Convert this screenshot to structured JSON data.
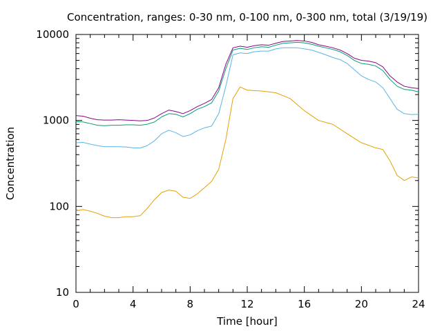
{
  "chart_data": {
    "type": "line",
    "title": "Concentration, ranges: 0-30 nm, 0-100 nm, 0-300 nm, total (3/19/19)",
    "xlabel": "Time [hour]",
    "ylabel": "Concentration",
    "xlim": [
      0,
      24
    ],
    "ylim": [
      10,
      10000
    ],
    "yscale": "log",
    "grid": false,
    "legend": "none",
    "x_ticks": [
      0,
      4,
      8,
      12,
      16,
      20,
      24
    ],
    "x_tick_labels": [
      "0",
      "4",
      "8",
      "12",
      "16",
      "20",
      "24"
    ],
    "y_ticks": [
      10,
      100,
      1000,
      10000
    ],
    "y_tick_labels": [
      "10",
      "100",
      "1000",
      "10000"
    ],
    "series": [
      {
        "color": "#E69F00",
        "x": [
          0,
          0.5,
          1,
          1.5,
          2,
          2.5,
          3,
          3.5,
          4,
          4.5,
          5,
          5.5,
          6,
          6.5,
          7,
          7.5,
          8,
          8.5,
          9,
          9.5,
          10,
          10.5,
          11,
          11.5,
          12,
          13,
          14,
          15,
          16,
          17,
          18,
          19,
          20,
          21,
          21.5,
          22,
          22.5,
          23,
          23.5,
          24
        ],
        "y": [
          89,
          92,
          88,
          83,
          77,
          74,
          74,
          76,
          76,
          78,
          95,
          120,
          145,
          155,
          150,
          128,
          124,
          140,
          165,
          195,
          270,
          600,
          1800,
          2450,
          2250,
          2200,
          2100,
          1800,
          1300,
          1000,
          900,
          700,
          550,
          480,
          460,
          340,
          230,
          200,
          220,
          215
        ]
      },
      {
        "color": "#56B4E9",
        "x": [
          0,
          0.5,
          1,
          1.5,
          2,
          2.5,
          3,
          3.5,
          4,
          4.5,
          5,
          5.5,
          6,
          6.5,
          7,
          7.5,
          8,
          8.5,
          9,
          9.5,
          10,
          10.5,
          11,
          11.5,
          12,
          12.5,
          13,
          13.5,
          14,
          14.5,
          15,
          15.5,
          16,
          16.5,
          17,
          17.5,
          18,
          18.5,
          19,
          19.5,
          20,
          20.5,
          21,
          21.5,
          22,
          22.5,
          23,
          23.5,
          24
        ],
        "y": [
          550,
          555,
          530,
          510,
          495,
          495,
          495,
          492,
          480,
          478,
          510,
          580,
          700,
          770,
          720,
          650,
          680,
          760,
          820,
          860,
          1200,
          2500,
          5800,
          6100,
          6000,
          6300,
          6400,
          6400,
          6800,
          7000,
          7000,
          7000,
          6800,
          6600,
          6200,
          5800,
          5400,
          5100,
          4600,
          3900,
          3300,
          3000,
          2800,
          2400,
          1800,
          1350,
          1200,
          1170,
          1180
        ]
      },
      {
        "color": "#009E73",
        "x": [
          0,
          0.5,
          1,
          1.5,
          2,
          2.5,
          3,
          3.5,
          4,
          4.5,
          5,
          5.5,
          6,
          6.5,
          7,
          7.5,
          8,
          8.5,
          9,
          9.5,
          10,
          10.5,
          11,
          11.5,
          12,
          12.5,
          13,
          13.5,
          14,
          14.5,
          15,
          15.5,
          16,
          16.5,
          17,
          17.5,
          18,
          18.5,
          19,
          19.5,
          20,
          20.5,
          21,
          21.5,
          22,
          22.5,
          23,
          23.5,
          24
        ],
        "y": [
          970,
          960,
          920,
          880,
          870,
          880,
          880,
          890,
          890,
          880,
          905,
          960,
          1100,
          1200,
          1180,
          1100,
          1200,
          1350,
          1450,
          1600,
          2200,
          4000,
          6600,
          6900,
          6700,
          7000,
          7200,
          7100,
          7500,
          7900,
          8000,
          8100,
          8000,
          7700,
          7300,
          7000,
          6700,
          6300,
          5700,
          5000,
          4600,
          4500,
          4300,
          3800,
          3000,
          2500,
          2300,
          2250,
          2150
        ]
      },
      {
        "color": "#8B008B",
        "x": [
          0,
          0.5,
          1,
          1.5,
          2,
          2.5,
          3,
          3.5,
          4,
          4.5,
          5,
          5.5,
          6,
          6.5,
          7,
          7.5,
          8,
          8.5,
          9,
          9.5,
          10,
          10.5,
          11,
          11.5,
          12,
          12.5,
          13,
          13.5,
          14,
          14.5,
          15,
          15.5,
          16,
          16.5,
          17,
          17.5,
          18,
          18.5,
          19,
          19.5,
          20,
          20.5,
          21,
          21.5,
          22,
          22.5,
          23,
          23.5,
          24
        ],
        "y": [
          1140,
          1120,
          1060,
          1020,
          1010,
          1010,
          1020,
          1010,
          1000,
          990,
          1000,
          1070,
          1200,
          1320,
          1270,
          1200,
          1300,
          1450,
          1580,
          1750,
          2400,
          4500,
          7000,
          7300,
          7100,
          7400,
          7600,
          7500,
          7900,
          8300,
          8400,
          8500,
          8400,
          8100,
          7600,
          7300,
          7000,
          6600,
          6000,
          5300,
          5000,
          4900,
          4700,
          4200,
          3300,
          2800,
          2500,
          2400,
          2350
        ]
      }
    ]
  }
}
